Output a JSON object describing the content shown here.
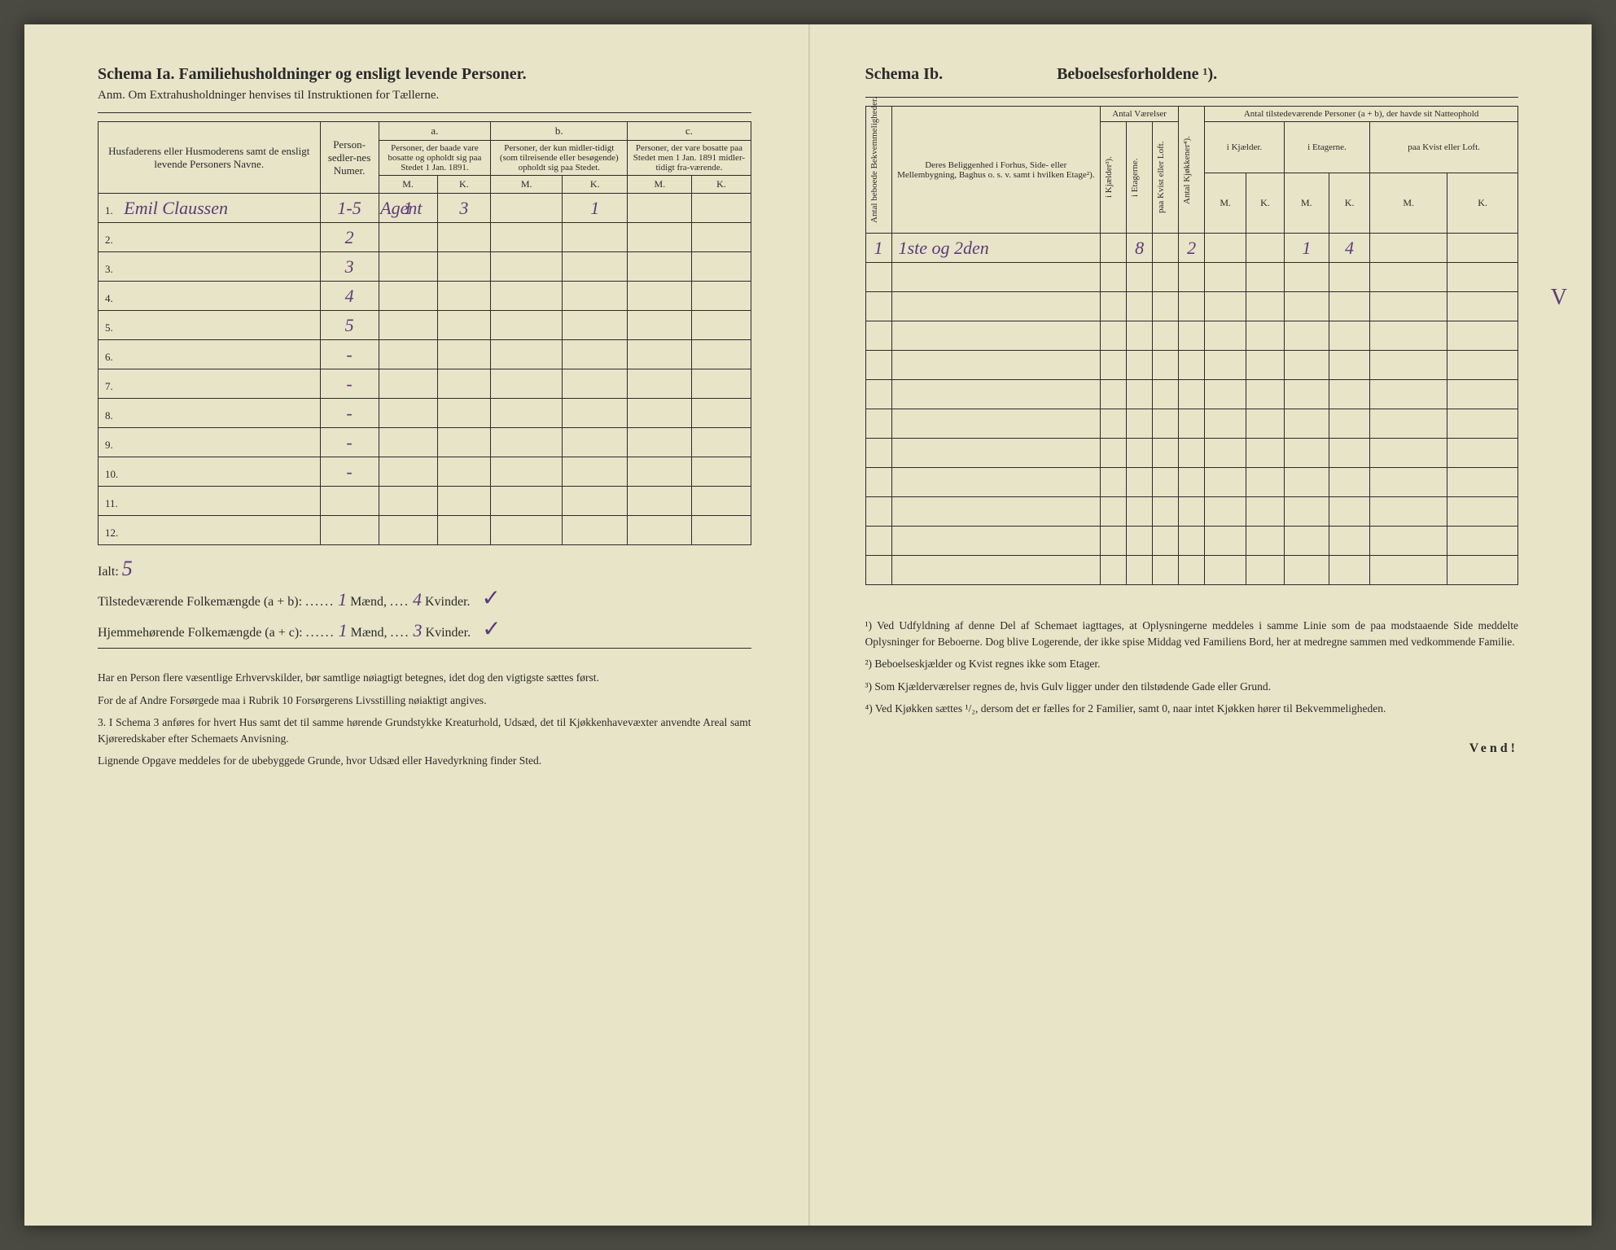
{
  "colors": {
    "paper": "#e8e4c8",
    "ink": "#2a2a2a",
    "handwriting": "#5c3a7a",
    "background": "#4a4a42"
  },
  "left": {
    "schema_title": "Schema Ia.  Familiehusholdninger og ensligt levende Personer.",
    "schema_sub": "Anm. Om Extrahusholdninger henvises til Instruktionen for Tællerne.",
    "headers": {
      "name": "Husfaderens eller Husmoderens samt de ensligt levende Personers Navne.",
      "numer": "Person-sedler-nes Numer.",
      "a_label": "a.",
      "a": "Personer, der baade vare bosatte og opholdt sig paa Stedet 1 Jan. 1891.",
      "b_label": "b.",
      "b": "Personer, der kun midler-tidigt (som tilreisende eller besøgende) opholdt sig paa Stedet.",
      "c_label": "c.",
      "c": "Personer, der vare bosatte paa Stedet men 1 Jan. 1891 midler-tidigt fra-værende.",
      "M": "M.",
      "K": "K."
    },
    "rows": [
      {
        "n": "1.",
        "name": "Emil Claussen",
        "numer": "1-5",
        "aM": "1",
        "aK": "3",
        "bM": "",
        "bK": "1",
        "cM": "",
        "cK": "",
        "note": "Agent"
      },
      {
        "n": "2.",
        "name": "",
        "numer": "2",
        "aM": "",
        "aK": "",
        "bM": "",
        "bK": "",
        "cM": "",
        "cK": "",
        "note": ""
      },
      {
        "n": "3.",
        "name": "",
        "numer": "3",
        "aM": "",
        "aK": "",
        "bM": "",
        "bK": "",
        "cM": "",
        "cK": "",
        "note": ""
      },
      {
        "n": "4.",
        "name": "",
        "numer": "4",
        "aM": "",
        "aK": "",
        "bM": "",
        "bK": "",
        "cM": "",
        "cK": "",
        "note": ""
      },
      {
        "n": "5.",
        "name": "",
        "numer": "5",
        "aM": "",
        "aK": "",
        "bM": "",
        "bK": "",
        "cM": "",
        "cK": "",
        "note": ""
      },
      {
        "n": "6.",
        "name": "",
        "numer": "-",
        "aM": "",
        "aK": "",
        "bM": "",
        "bK": "",
        "cM": "",
        "cK": "",
        "note": ""
      },
      {
        "n": "7.",
        "name": "",
        "numer": "-",
        "aM": "",
        "aK": "",
        "bM": "",
        "bK": "",
        "cM": "",
        "cK": "",
        "note": ""
      },
      {
        "n": "8.",
        "name": "",
        "numer": "-",
        "aM": "",
        "aK": "",
        "bM": "",
        "bK": "",
        "cM": "",
        "cK": "",
        "note": ""
      },
      {
        "n": "9.",
        "name": "",
        "numer": "-",
        "aM": "",
        "aK": "",
        "bM": "",
        "bK": "",
        "cM": "",
        "cK": "",
        "note": ""
      },
      {
        "n": "10.",
        "name": "",
        "numer": "-",
        "aM": "",
        "aK": "",
        "bM": "",
        "bK": "",
        "cM": "",
        "cK": "",
        "note": ""
      },
      {
        "n": "11.",
        "name": "",
        "numer": "",
        "aM": "",
        "aK": "",
        "bM": "",
        "bK": "",
        "cM": "",
        "cK": "",
        "note": ""
      },
      {
        "n": "12.",
        "name": "",
        "numer": "",
        "aM": "",
        "aK": "",
        "bM": "",
        "bK": "",
        "cM": "",
        "cK": "",
        "note": ""
      }
    ],
    "ialt_label": "Ialt:",
    "ialt_value": "5",
    "sum1_pre": "Tilstedeværende Folkemængde (a + b):",
    "sum1_m": "1",
    "sum1_k": "4",
    "sum2_pre": "Hjemmehørende Folkemængde (a + c):",
    "sum2_m": "1",
    "sum2_k": "3",
    "maend": "Mænd,",
    "kvinder": "Kvinder.",
    "notes": [
      "Har en Person flere væsentlige Erhvervskilder, bør samtlige nøiagtigt betegnes, idet dog den vigtigste sættes først.",
      "For de af Andre Forsørgede maa i Rubrik 10 Forsørgerens Livsstilling nøiaktigt angives.",
      "3. I Schema 3 anføres for hvert Hus samt det til samme hørende Grundstykke Kreaturhold, Udsæd, det til Kjøkkenhavevæxter anvendte Areal samt Kjøreredskaber efter Schemaets Anvisning.",
      "Lignende Opgave meddeles for de ubebyggede Grunde, hvor Udsæd eller Havedyrkning finder Sted."
    ]
  },
  "right": {
    "schema_title": "Schema Ib.",
    "main_title": "Beboelsesforholdene ¹).",
    "headers": {
      "antal_bekv": "Antal beboede Bekvemmeligheder.",
      "beligg": "Deres Beliggenhed i Forhus, Side- eller Mellembygning, Baghus o. s. v. samt i hvilken Etage²).",
      "vaerelser": "Antal Værelser",
      "kjaelder": "i Kjælder³).",
      "etagerne": "i Etagerne.",
      "kvist": "paa Kvist eller Loft.",
      "kjokken": "Antal Kjøkkener⁴).",
      "tilstede": "Antal tilstedeværende Personer (a + b), der havde sit Natteophold",
      "ik": "i Kjælder.",
      "ie": "i Etagerne.",
      "pk": "paa Kvist eller Loft.",
      "M": "M.",
      "K": "K."
    },
    "rows": [
      {
        "bekv": "1",
        "beligg": "1ste og 2den",
        "kj": "",
        "et": "8",
        "kv": "",
        "kok": "2",
        "ikM": "",
        "ikK": "",
        "ieM": "1",
        "ieK": "4",
        "pkM": "",
        "pkK": ""
      }
    ],
    "empty_rows": 11,
    "foot_notes": [
      "¹) Ved Udfyldning af denne Del af Schemaet iagttages, at Oplysningerne meddeles i samme Linie som de paa modstaaende Side meddelte Oplysninger for Beboerne. Dog blive Logerende, der ikke spise Middag ved Familiens Bord, her at medregne sammen med vedkommende Familie.",
      "²) Beboelseskjælder og Kvist regnes ikke som Etager.",
      "³) Som Kjælderværelser regnes de, hvis Gulv ligger under den tilstødende Gade eller Grund.",
      "⁴) Ved Kjøkken sættes ¹/₂, dersom det er fælles for 2 Familier, samt 0, naar intet Kjøkken hører til Bekvemmeligheden."
    ],
    "vend": "Vend!",
    "side_check": "V"
  }
}
